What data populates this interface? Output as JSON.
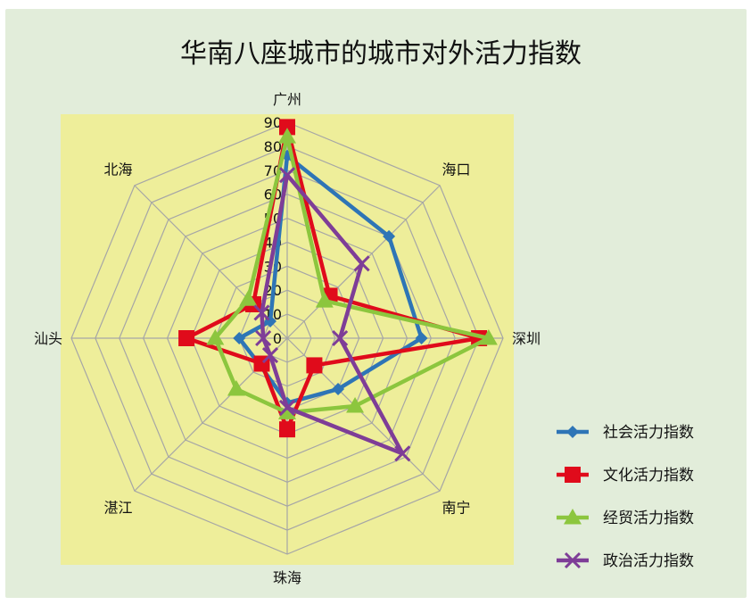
{
  "colors": {
    "page_background": "#e2edda",
    "plot_background": "#eeee9a",
    "grid": "#a6a6a6"
  },
  "chart_data": {
    "type": "radar",
    "title": "华南八座城市的城市对外活力指数",
    "categories": [
      "广州",
      "海口",
      "深圳",
      "南宁",
      "珠海",
      "湛江",
      "汕头",
      "北海"
    ],
    "rlim": [
      0,
      90
    ],
    "r_ticks": [
      "0",
      "10",
      "20",
      "30",
      "40",
      "50",
      "60",
      "70",
      "80",
      "90"
    ],
    "grid": true,
    "legend_position": "right",
    "series": [
      {
        "name": "社会活力指数",
        "color": "#2e75b6",
        "marker": "diamond",
        "values": [
          76,
          60,
          56,
          30,
          27,
          16,
          20,
          10
        ]
      },
      {
        "name": "文化活力指数",
        "color": "#e00b1b",
        "marker": "square",
        "values": [
          88,
          25,
          80,
          16,
          38,
          15,
          42,
          20
        ]
      },
      {
        "name": "经贸活力指数",
        "color": "#8cc63e",
        "marker": "triangle",
        "values": [
          84,
          22,
          84,
          40,
          31,
          30,
          30,
          23
        ]
      },
      {
        "name": "政治活力指数",
        "color": "#7e3d97",
        "marker": "x",
        "values": [
          68,
          44,
          22,
          68,
          29,
          10,
          10,
          15
        ]
      }
    ]
  }
}
